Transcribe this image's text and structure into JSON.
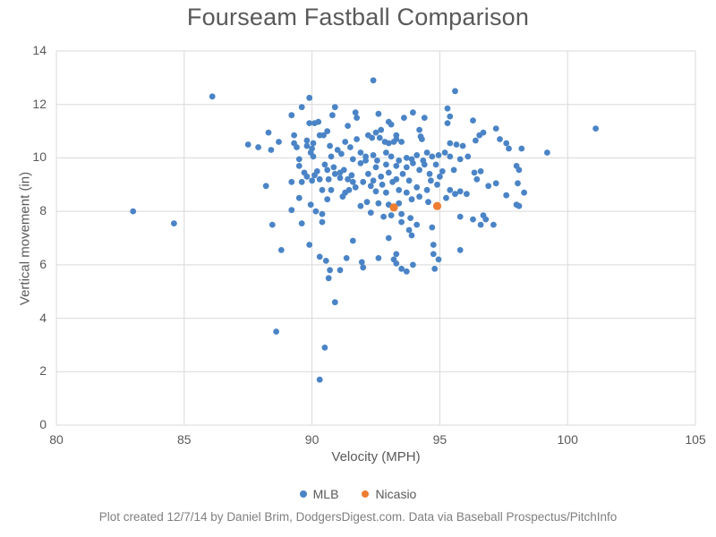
{
  "title": "Fourseam Fastball Comparison",
  "footer": {
    "caption": "Plot created 12/7/14 by Daniel Brim, DodgersDigest.com. Data via Baseball Prospectus/PitchInfo"
  },
  "colors": {
    "title_text": "#595959",
    "axis_text": "#595959",
    "caption_text": "#7f7f7f",
    "gridline": "#d9d9d9",
    "mlb_blue": "#4a84c6",
    "nicasio_orange": "#ed7d31",
    "background": "#ffffff"
  },
  "chart_data": {
    "type": "scatter",
    "title": "Fourseam Fastball Comparison",
    "xlabel": "Velocity (MPH)",
    "ylabel": "Vertical movement (in)",
    "xlim": [
      80,
      105
    ],
    "ylim": [
      0,
      14
    ],
    "xticks": [
      80,
      85,
      90,
      95,
      100,
      105
    ],
    "yticks": [
      0,
      2,
      4,
      6,
      8,
      10,
      12,
      14
    ],
    "grid": true,
    "legend_position": "bottom",
    "series": [
      {
        "name": "MLB",
        "color": "#4a84c6",
        "marker_radius": 3.4,
        "points": [
          [
            83.0,
            8.0
          ],
          [
            84.6,
            7.55
          ],
          [
            86.1,
            12.3
          ],
          [
            89.9,
            12.25
          ],
          [
            92.4,
            12.9
          ],
          [
            95.6,
            12.5
          ],
          [
            89.6,
            11.9
          ],
          [
            90.9,
            11.9
          ],
          [
            89.2,
            11.6
          ],
          [
            90.8,
            11.6
          ],
          [
            91.7,
            11.7
          ],
          [
            91.75,
            11.5
          ],
          [
            95.3,
            11.85
          ],
          [
            95.4,
            11.55
          ],
          [
            92.6,
            11.65
          ],
          [
            93.95,
            11.7
          ],
          [
            94.4,
            11.5
          ],
          [
            93.6,
            11.5
          ],
          [
            93.0,
            11.35
          ],
          [
            93.1,
            11.25
          ],
          [
            89.9,
            11.3
          ],
          [
            90.1,
            11.3
          ],
          [
            90.25,
            11.35
          ],
          [
            91.4,
            11.2
          ],
          [
            95.3,
            11.3
          ],
          [
            96.3,
            11.4
          ],
          [
            101.1,
            11.1
          ],
          [
            97.2,
            11.1
          ],
          [
            88.3,
            10.95
          ],
          [
            90.6,
            11.0
          ],
          [
            89.3,
            10.85
          ],
          [
            90.3,
            10.85
          ],
          [
            90.45,
            10.85
          ],
          [
            88.7,
            10.6
          ],
          [
            87.9,
            10.4
          ],
          [
            87.5,
            10.5
          ],
          [
            89.3,
            10.55
          ],
          [
            89.4,
            10.4
          ],
          [
            88.4,
            10.3
          ],
          [
            89.8,
            10.65
          ],
          [
            89.8,
            10.45
          ],
          [
            90.05,
            10.55
          ],
          [
            90.0,
            10.35
          ],
          [
            91.3,
            10.6
          ],
          [
            91.75,
            10.7
          ],
          [
            92.2,
            10.85
          ],
          [
            92.35,
            10.75
          ],
          [
            92.5,
            10.95
          ],
          [
            92.7,
            11.05
          ],
          [
            92.65,
            10.75
          ],
          [
            92.85,
            10.6
          ],
          [
            93.0,
            10.55
          ],
          [
            93.2,
            10.6
          ],
          [
            93.3,
            10.7
          ],
          [
            93.5,
            10.6
          ],
          [
            93.3,
            10.85
          ],
          [
            94.2,
            11.05
          ],
          [
            94.25,
            10.8
          ],
          [
            94.3,
            10.7
          ],
          [
            95.4,
            10.55
          ],
          [
            95.65,
            10.5
          ],
          [
            95.9,
            10.45
          ],
          [
            96.4,
            10.65
          ],
          [
            96.55,
            10.85
          ],
          [
            96.7,
            10.95
          ],
          [
            97.35,
            10.7
          ],
          [
            97.6,
            10.55
          ],
          [
            97.7,
            10.35
          ],
          [
            98.2,
            10.35
          ],
          [
            99.2,
            10.2
          ],
          [
            91.0,
            10.3
          ],
          [
            91.5,
            10.4
          ],
          [
            90.7,
            10.45
          ],
          [
            91.15,
            10.15
          ],
          [
            89.95,
            10.2
          ],
          [
            90.05,
            10.05
          ],
          [
            90.75,
            10.05
          ],
          [
            89.5,
            9.95
          ],
          [
            91.9,
            10.2
          ],
          [
            92.1,
            10.05
          ],
          [
            92.4,
            10.1
          ],
          [
            92.9,
            10.2
          ],
          [
            93.1,
            10.05
          ],
          [
            93.7,
            10.0
          ],
          [
            94.1,
            10.1
          ],
          [
            94.5,
            10.2
          ],
          [
            94.7,
            10.05
          ],
          [
            94.95,
            10.1
          ],
          [
            95.2,
            10.2
          ],
          [
            95.4,
            10.05
          ],
          [
            95.8,
            9.95
          ],
          [
            96.1,
            10.05
          ],
          [
            92.1,
            9.9
          ],
          [
            92.55,
            9.9
          ],
          [
            93.4,
            9.9
          ],
          [
            93.9,
            9.95
          ],
          [
            94.35,
            9.9
          ],
          [
            94.85,
            9.75
          ],
          [
            95.1,
            9.5
          ],
          [
            95.0,
            9.3
          ],
          [
            91.6,
            9.95
          ],
          [
            89.5,
            9.7
          ],
          [
            90.5,
            9.75
          ],
          [
            90.6,
            9.55
          ],
          [
            90.9,
            9.4
          ],
          [
            91.1,
            9.45
          ],
          [
            91.1,
            9.25
          ],
          [
            91.25,
            9.55
          ],
          [
            89.8,
            9.3
          ],
          [
            91.9,
            9.8
          ],
          [
            92.2,
            9.4
          ],
          [
            92.5,
            9.65
          ],
          [
            92.7,
            9.3
          ],
          [
            92.9,
            9.75
          ],
          [
            93.0,
            9.45
          ],
          [
            93.3,
            9.7
          ],
          [
            93.55,
            9.4
          ],
          [
            93.7,
            9.65
          ],
          [
            93.95,
            9.8
          ],
          [
            94.2,
            9.55
          ],
          [
            94.4,
            9.75
          ],
          [
            94.6,
            9.4
          ],
          [
            95.55,
            9.55
          ],
          [
            96.35,
            9.45
          ],
          [
            96.6,
            9.5
          ],
          [
            96.45,
            9.2
          ],
          [
            98.0,
            9.7
          ],
          [
            98.1,
            9.55
          ],
          [
            90.85,
            9.65
          ],
          [
            90.2,
            9.5
          ],
          [
            90.1,
            9.35
          ],
          [
            89.7,
            9.45
          ],
          [
            91.55,
            9.35
          ],
          [
            92.4,
            9.15
          ],
          [
            88.2,
            8.95
          ],
          [
            89.2,
            9.1
          ],
          [
            89.6,
            9.1
          ],
          [
            90.0,
            9.15
          ],
          [
            90.3,
            9.2
          ],
          [
            90.65,
            9.2
          ],
          [
            91.4,
            9.2
          ],
          [
            91.6,
            9.1
          ],
          [
            91.45,
            8.8
          ],
          [
            90.4,
            8.8
          ],
          [
            90.75,
            8.8
          ],
          [
            92.0,
            9.1
          ],
          [
            92.3,
            8.95
          ],
          [
            92.75,
            9.0
          ],
          [
            93.15,
            9.1
          ],
          [
            93.3,
            9.2
          ],
          [
            93.8,
            9.15
          ],
          [
            94.1,
            8.9
          ],
          [
            94.5,
            8.8
          ],
          [
            94.9,
            9.0
          ],
          [
            94.65,
            9.15
          ],
          [
            95.4,
            8.8
          ],
          [
            95.8,
            8.75
          ],
          [
            96.9,
            8.95
          ],
          [
            97.2,
            9.05
          ],
          [
            98.05,
            9.05
          ],
          [
            91.7,
            8.9
          ],
          [
            89.5,
            8.5
          ],
          [
            89.95,
            8.25
          ],
          [
            90.6,
            8.45
          ],
          [
            91.3,
            8.7
          ],
          [
            91.2,
            8.55
          ],
          [
            92.5,
            8.75
          ],
          [
            92.9,
            8.7
          ],
          [
            93.4,
            8.8
          ],
          [
            93.7,
            8.7
          ],
          [
            94.2,
            8.55
          ],
          [
            94.55,
            8.35
          ],
          [
            93.9,
            8.45
          ],
          [
            93.4,
            8.3
          ],
          [
            93.0,
            8.25
          ],
          [
            92.6,
            8.3
          ],
          [
            92.15,
            8.35
          ],
          [
            91.9,
            8.2
          ],
          [
            95.25,
            8.5
          ],
          [
            95.6,
            8.65
          ],
          [
            96.05,
            8.65
          ],
          [
            97.6,
            8.6
          ],
          [
            98.3,
            8.7
          ],
          [
            98.0,
            8.25
          ],
          [
            98.1,
            8.2
          ],
          [
            89.2,
            8.05
          ],
          [
            90.15,
            8.0
          ],
          [
            90.4,
            7.9
          ],
          [
            92.3,
            7.95
          ],
          [
            92.8,
            7.8
          ],
          [
            93.1,
            7.85
          ],
          [
            93.5,
            7.9
          ],
          [
            93.85,
            7.75
          ],
          [
            93.5,
            7.6
          ],
          [
            90.4,
            7.6
          ],
          [
            89.6,
            7.55
          ],
          [
            88.45,
            7.5
          ],
          [
            94.1,
            7.5
          ],
          [
            94.7,
            7.4
          ],
          [
            96.6,
            7.5
          ],
          [
            97.1,
            7.5
          ],
          [
            95.8,
            7.8
          ],
          [
            96.3,
            7.7
          ],
          [
            96.7,
            7.85
          ],
          [
            96.8,
            7.7
          ],
          [
            93.8,
            7.3
          ],
          [
            93.9,
            7.1
          ],
          [
            93.0,
            7.0
          ],
          [
            91.6,
            6.9
          ],
          [
            89.9,
            6.75
          ],
          [
            94.75,
            6.75
          ],
          [
            88.8,
            6.55
          ],
          [
            90.3,
            6.3
          ],
          [
            90.55,
            6.15
          ],
          [
            91.35,
            6.25
          ],
          [
            91.95,
            6.1
          ],
          [
            92.6,
            6.25
          ],
          [
            93.2,
            6.2
          ],
          [
            93.3,
            6.4
          ],
          [
            94.75,
            6.4
          ],
          [
            94.95,
            6.2
          ],
          [
            95.8,
            6.55
          ],
          [
            93.3,
            6.05
          ],
          [
            93.5,
            5.85
          ],
          [
            93.7,
            5.75
          ],
          [
            93.95,
            6.0
          ],
          [
            94.8,
            5.85
          ],
          [
            92.0,
            5.9
          ],
          [
            90.7,
            5.8
          ],
          [
            91.1,
            5.8
          ],
          [
            90.65,
            5.5
          ],
          [
            90.9,
            4.6
          ],
          [
            88.6,
            3.5
          ],
          [
            90.5,
            2.9
          ],
          [
            90.3,
            1.7
          ]
        ]
      },
      {
        "name": "Nicasio",
        "color": "#ed7d31",
        "marker_radius": 4.6,
        "points": [
          [
            93.2,
            8.15
          ],
          [
            94.9,
            8.2
          ]
        ]
      }
    ]
  }
}
